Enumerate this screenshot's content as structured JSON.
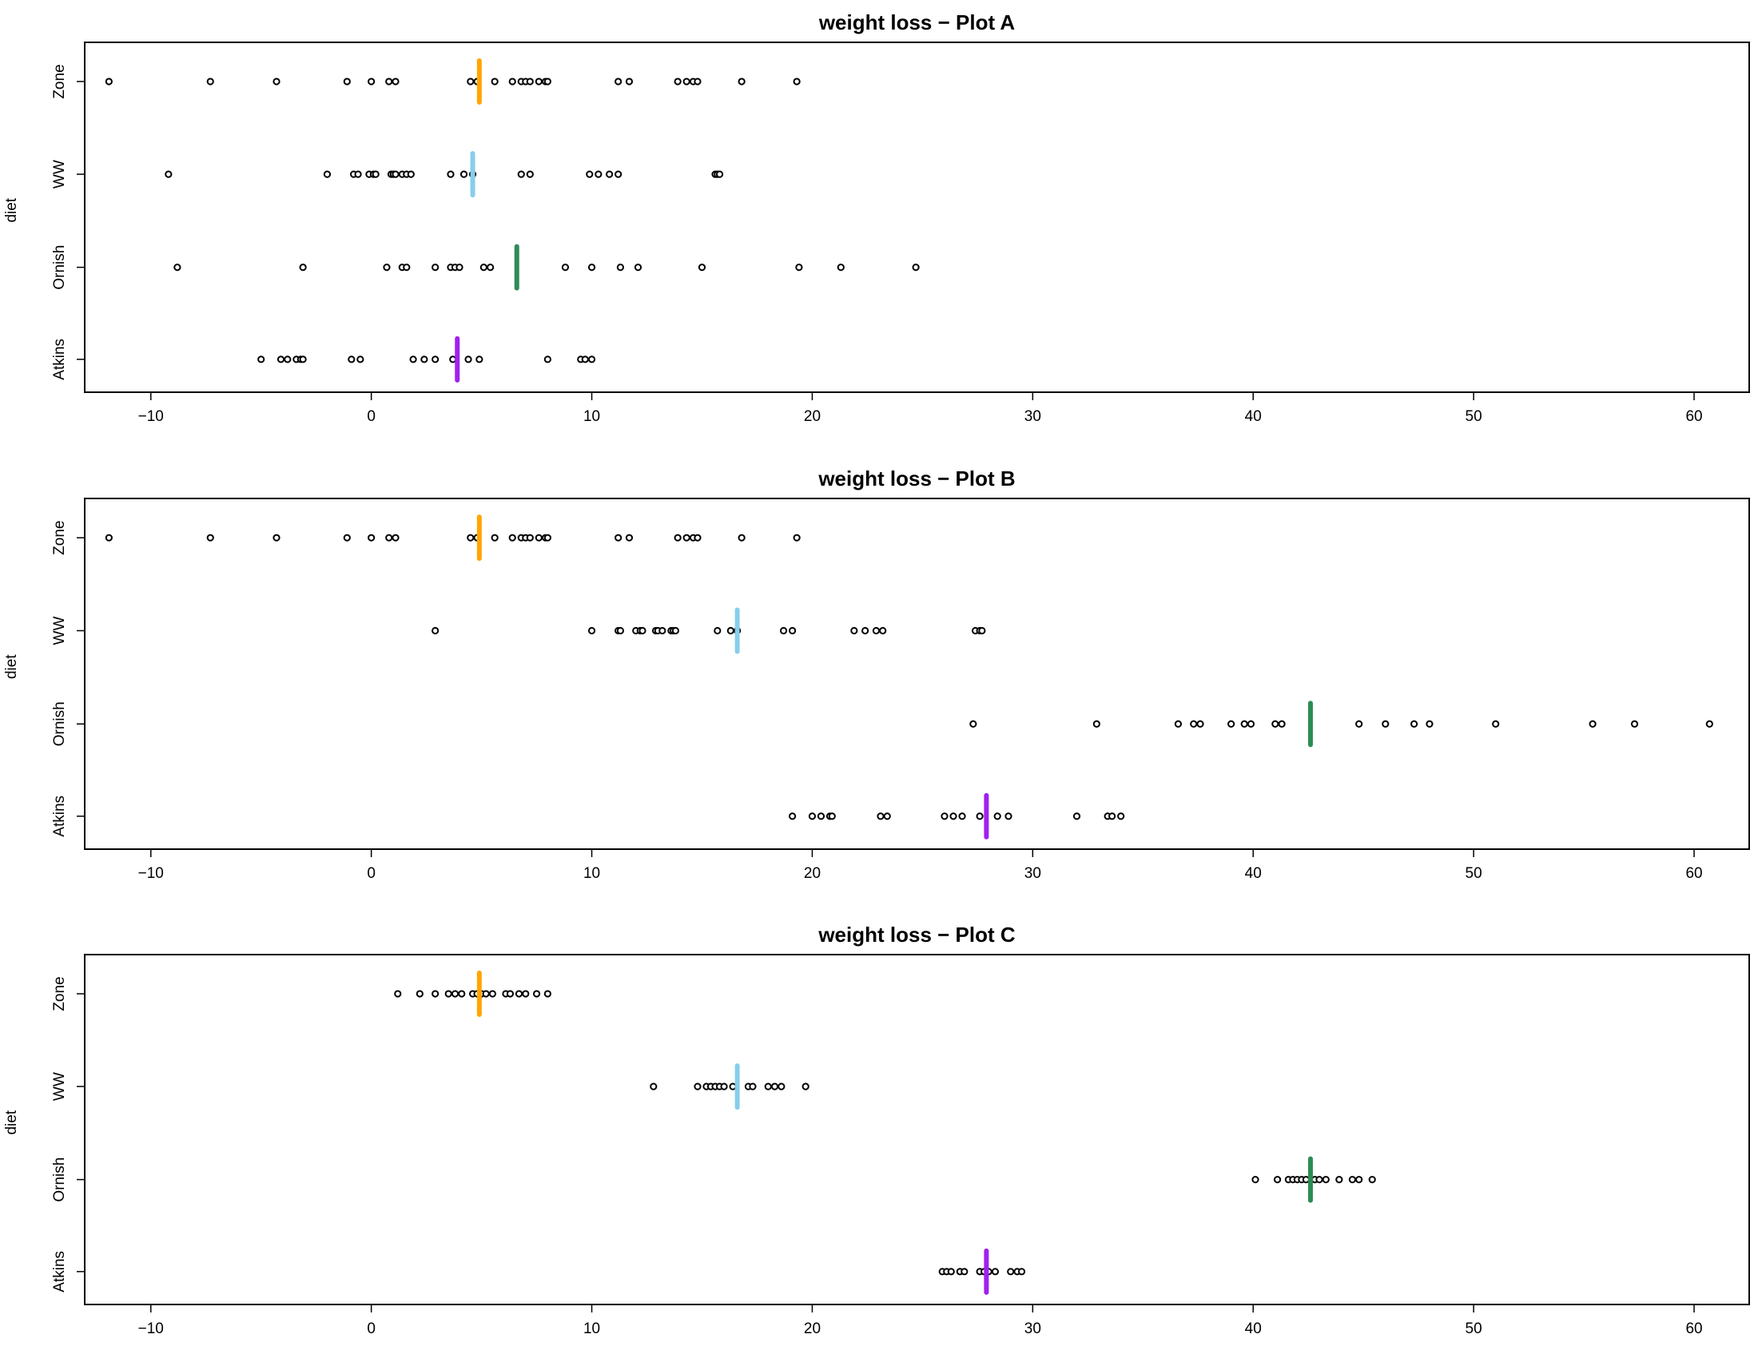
{
  "figure": {
    "ylabel": "diet"
  },
  "categories": [
    "Atkins",
    "Ornish",
    "WW",
    "Zone"
  ],
  "mean_colors": {
    "Atkins": "#a020f0",
    "Ornish": "#2e8b57",
    "WW": "#87ceeb",
    "Zone": "#ffa500"
  },
  "chart_data": [
    {
      "type": "scatter",
      "title": "weight loss − Plot A",
      "ylabel": "diet",
      "xlim": [
        -13,
        62.5
      ],
      "xticks": [
        -10,
        0,
        10,
        20,
        30,
        40,
        50,
        60
      ],
      "categories": [
        "Atkins",
        "Ornish",
        "WW",
        "Zone"
      ],
      "series": [
        {
          "name": "Atkins",
          "mean": 3.9,
          "values": [
            -5.0,
            -4.1,
            -3.8,
            -3.4,
            -3.2,
            -3.1,
            -0.9,
            -0.5,
            1.9,
            2.4,
            2.9,
            3.7,
            4.4,
            4.9,
            8.0,
            9.5,
            9.7,
            10.0
          ]
        },
        {
          "name": "Ornish",
          "mean": 6.6,
          "values": [
            -8.8,
            -3.1,
            0.7,
            1.4,
            1.6,
            2.9,
            3.6,
            3.8,
            4.0,
            5.1,
            5.4,
            8.8,
            10.0,
            11.3,
            12.1,
            15.0,
            19.4,
            21.3,
            24.7
          ]
        },
        {
          "name": "WW",
          "mean": 4.6,
          "values": [
            -9.2,
            -2.0,
            -0.8,
            -0.6,
            -0.1,
            0.1,
            0.2,
            0.9,
            1.0,
            1.1,
            1.4,
            1.6,
            1.8,
            3.6,
            4.2,
            4.6,
            6.8,
            7.2,
            9.9,
            10.3,
            10.8,
            11.2,
            15.6,
            15.7,
            15.8
          ]
        },
        {
          "name": "Zone",
          "mean": 4.9,
          "values": [
            -11.9,
            -7.3,
            -4.3,
            -1.1,
            0.0,
            0.8,
            1.1,
            4.5,
            4.8,
            5.6,
            6.4,
            6.8,
            7.0,
            7.2,
            7.6,
            7.9,
            8.0,
            11.2,
            11.7,
            13.9,
            14.3,
            14.6,
            14.8,
            16.8,
            19.3
          ]
        }
      ]
    },
    {
      "type": "scatter",
      "title": "weight loss − Plot B",
      "ylabel": "diet",
      "xlim": [
        -13,
        62.5
      ],
      "xticks": [
        -10,
        0,
        10,
        20,
        30,
        40,
        50,
        60
      ],
      "categories": [
        "Atkins",
        "Ornish",
        "WW",
        "Zone"
      ],
      "series": [
        {
          "name": "Atkins",
          "mean": 27.9,
          "values": [
            19.1,
            20.0,
            20.4,
            20.8,
            20.9,
            23.1,
            23.4,
            26.0,
            26.4,
            26.8,
            27.6,
            28.4,
            28.9,
            32.0,
            33.4,
            33.6,
            34.0
          ]
        },
        {
          "name": "Ornish",
          "mean": 42.6,
          "values": [
            27.3,
            32.9,
            36.6,
            37.3,
            37.6,
            39.0,
            39.6,
            39.9,
            41.0,
            41.3,
            44.8,
            46.0,
            47.3,
            48.0,
            51.0,
            55.4,
            57.3,
            60.7
          ]
        },
        {
          "name": "WW",
          "mean": 16.6,
          "values": [
            2.9,
            10.0,
            11.2,
            11.3,
            12.0,
            12.2,
            12.3,
            12.9,
            13.0,
            13.2,
            13.6,
            13.7,
            13.8,
            15.7,
            16.3,
            16.6,
            18.7,
            19.1,
            21.9,
            22.4,
            22.9,
            23.2,
            27.4,
            27.6,
            27.7
          ]
        },
        {
          "name": "Zone",
          "mean": 4.9,
          "values": [
            -11.9,
            -7.3,
            -4.3,
            -1.1,
            0.0,
            0.8,
            1.1,
            4.5,
            4.8,
            5.6,
            6.4,
            6.8,
            7.0,
            7.2,
            7.6,
            7.9,
            8.0,
            11.2,
            11.7,
            13.9,
            14.3,
            14.6,
            14.8,
            16.8,
            19.3
          ]
        }
      ]
    },
    {
      "type": "scatter",
      "title": "weight loss − Plot C",
      "ylabel": "diet",
      "xlim": [
        -13,
        62.5
      ],
      "xticks": [
        -10,
        0,
        10,
        20,
        30,
        40,
        50,
        60
      ],
      "categories": [
        "Atkins",
        "Ornish",
        "WW",
        "Zone"
      ],
      "series": [
        {
          "name": "Atkins",
          "mean": 27.9,
          "values": [
            25.9,
            26.1,
            26.3,
            26.7,
            26.9,
            27.6,
            27.8,
            28.0,
            28.3,
            29.0,
            29.3,
            29.5
          ]
        },
        {
          "name": "Ornish",
          "mean": 42.6,
          "values": [
            40.1,
            41.1,
            41.6,
            41.8,
            42.0,
            42.2,
            42.4,
            42.8,
            43.0,
            43.3,
            43.9,
            44.5,
            44.8,
            45.4
          ]
        },
        {
          "name": "WW",
          "mean": 16.6,
          "values": [
            12.8,
            14.8,
            15.2,
            15.4,
            15.6,
            15.8,
            16.0,
            16.4,
            17.1,
            17.3,
            18.0,
            18.3,
            18.6,
            19.7
          ]
        },
        {
          "name": "Zone",
          "mean": 4.9,
          "values": [
            1.2,
            2.2,
            2.9,
            3.5,
            3.8,
            4.1,
            4.6,
            4.8,
            5.0,
            5.2,
            5.5,
            6.1,
            6.3,
            6.7,
            7.0,
            7.5,
            8.0
          ]
        }
      ]
    }
  ]
}
